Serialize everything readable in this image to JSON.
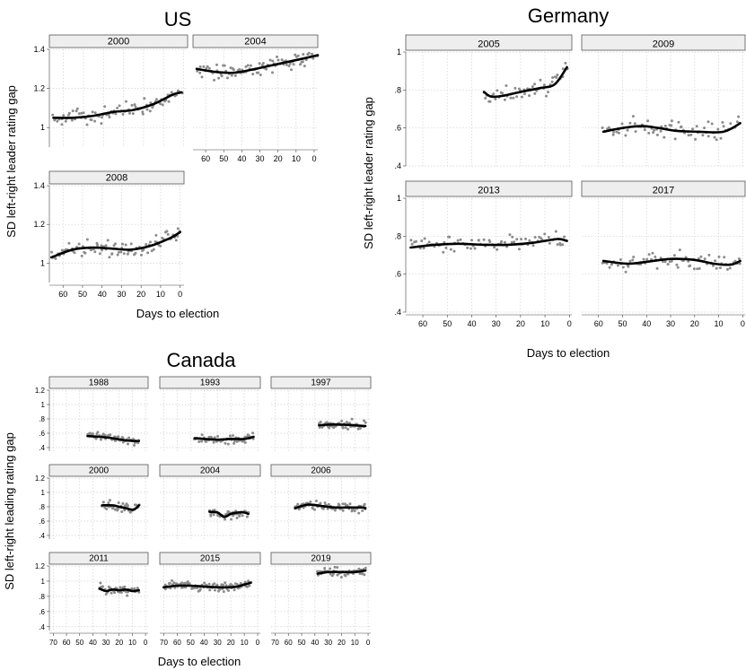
{
  "figure": {
    "groups": [
      {
        "key": "us",
        "title": "US",
        "ylabel": "SD left-right leader rating gap",
        "xlabel": "Days to election"
      },
      {
        "key": "germany",
        "title": "Germany",
        "ylabel": "SD left-right leader rating gap",
        "xlabel": "Days to election"
      },
      {
        "key": "canada",
        "title": "Canada",
        "ylabel": "SD left-right leading rating gap",
        "xlabel": "Days to election"
      }
    ]
  },
  "colors": {
    "points": "#8c8c8c",
    "line": "#000000",
    "strip_bg": "#eeeeee",
    "strip_border": "#555555",
    "grid": "#d0d0d0"
  },
  "chart_data": [
    {
      "type": "scatter",
      "title": "US",
      "xlabel": "Days to election",
      "ylabel": "SD left-right leader rating gap",
      "x_reversed": true,
      "xlim": [
        67,
        -2
      ],
      "ylim": [
        0.9,
        1.4
      ],
      "xticks": [
        60,
        50,
        40,
        30,
        20,
        10,
        0
      ],
      "xtick_labels": [
        "60",
        "50",
        "40",
        "30",
        "20",
        "10",
        "0"
      ],
      "yticks": [
        1,
        1.2,
        1.4
      ],
      "ytick_labels": [
        "1",
        "1.2",
        "1.4"
      ],
      "grid": true,
      "panels": [
        {
          "title": "2000",
          "smooth": [
            [
              65,
              1.05
            ],
            [
              55,
              1.05
            ],
            [
              45,
              1.06
            ],
            [
              35,
              1.08
            ],
            [
              25,
              1.09
            ],
            [
              15,
              1.12
            ],
            [
              5,
              1.17
            ],
            [
              1,
              1.18
            ]
          ]
        },
        {
          "title": "2004",
          "smooth": [
            [
              65,
              1.3
            ],
            [
              55,
              1.285
            ],
            [
              45,
              1.28
            ],
            [
              35,
              1.295
            ],
            [
              25,
              1.315
            ],
            [
              15,
              1.335
            ],
            [
              5,
              1.355
            ],
            [
              -2,
              1.37
            ]
          ]
        },
        {
          "title": "2008",
          "smooth": [
            [
              66,
              1.03
            ],
            [
              55,
              1.07
            ],
            [
              45,
              1.08
            ],
            [
              35,
              1.075
            ],
            [
              25,
              1.07
            ],
            [
              15,
              1.09
            ],
            [
              5,
              1.13
            ],
            [
              0,
              1.16
            ]
          ]
        }
      ]
    },
    {
      "type": "scatter",
      "title": "Germany",
      "xlabel": "Days to election",
      "ylabel": "SD left-right leader rating gap",
      "x_reversed": true,
      "xlim": [
        67,
        -1
      ],
      "ylim": [
        0.4,
        1.0
      ],
      "xticks": [
        60,
        50,
        40,
        30,
        20,
        10,
        0
      ],
      "xtick_labels": [
        "60",
        "50",
        "40",
        "30",
        "20",
        "10",
        "0"
      ],
      "yticks": [
        0.4,
        0.6,
        0.8,
        1
      ],
      "ytick_labels": [
        ".4",
        ".6",
        ".8",
        "1"
      ],
      "grid": true,
      "panels": [
        {
          "title": "2005",
          "smooth": [
            [
              35,
              0.79
            ],
            [
              32,
              0.765
            ],
            [
              27,
              0.77
            ],
            [
              20,
              0.79
            ],
            [
              12,
              0.81
            ],
            [
              6,
              0.83
            ],
            [
              1,
              0.92
            ]
          ]
        },
        {
          "title": "2009",
          "smooth": [
            [
              58,
              0.58
            ],
            [
              50,
              0.6
            ],
            [
              42,
              0.61
            ],
            [
              35,
              0.6
            ],
            [
              28,
              0.585
            ],
            [
              18,
              0.58
            ],
            [
              8,
              0.58
            ],
            [
              1,
              0.625
            ]
          ]
        },
        {
          "title": "2013",
          "smooth": [
            [
              65,
              0.74
            ],
            [
              55,
              0.755
            ],
            [
              45,
              0.76
            ],
            [
              35,
              0.755
            ],
            [
              25,
              0.755
            ],
            [
              15,
              0.765
            ],
            [
              5,
              0.785
            ],
            [
              1,
              0.775
            ]
          ]
        },
        {
          "title": "2017",
          "smooth": [
            [
              58,
              0.67
            ],
            [
              48,
              0.655
            ],
            [
              40,
              0.665
            ],
            [
              30,
              0.68
            ],
            [
              20,
              0.675
            ],
            [
              12,
              0.655
            ],
            [
              5,
              0.65
            ],
            [
              1,
              0.67
            ]
          ]
        }
      ]
    },
    {
      "type": "scatter",
      "title": "Canada",
      "xlabel": "Days to election",
      "ylabel": "SD left-right leading rating gap",
      "x_reversed": true,
      "xlim": [
        73,
        -2
      ],
      "ylim": [
        0.35,
        1.2
      ],
      "xticks": [
        70,
        60,
        50,
        40,
        30,
        20,
        10,
        0
      ],
      "xtick_labels": [
        "70",
        "60",
        "50",
        "40",
        "30",
        "20",
        "10",
        "0"
      ],
      "yticks": [
        0.4,
        0.6,
        0.8,
        1,
        1.2
      ],
      "ytick_labels": [
        ".4",
        ".6",
        ".8",
        "1",
        "1.2"
      ],
      "grid": true,
      "panels": [
        {
          "title": "1988",
          "smooth": [
            [
              44,
              0.56
            ],
            [
              35,
              0.55
            ],
            [
              25,
              0.53
            ],
            [
              15,
              0.5
            ],
            [
              5,
              0.49
            ]
          ]
        },
        {
          "title": "1993",
          "smooth": [
            [
              47,
              0.53
            ],
            [
              40,
              0.52
            ],
            [
              30,
              0.51
            ],
            [
              20,
              0.52
            ],
            [
              10,
              0.52
            ],
            [
              3,
              0.55
            ]
          ]
        },
        {
          "title": "1997",
          "smooth": [
            [
              37,
              0.71
            ],
            [
              30,
              0.72
            ],
            [
              20,
              0.72
            ],
            [
              10,
              0.71
            ],
            [
              2,
              0.7
            ]
          ]
        },
        {
          "title": "2000",
          "smooth": [
            [
              33,
              0.82
            ],
            [
              25,
              0.82
            ],
            [
              20,
              0.8
            ],
            [
              15,
              0.78
            ],
            [
              9,
              0.76
            ],
            [
              5,
              0.82
            ]
          ]
        },
        {
          "title": "2004",
          "smooth": [
            [
              36,
              0.73
            ],
            [
              30,
              0.72
            ],
            [
              25,
              0.66
            ],
            [
              20,
              0.7
            ],
            [
              15,
              0.72
            ],
            [
              10,
              0.72
            ],
            [
              7,
              0.7
            ]
          ]
        },
        {
          "title": "2006",
          "smooth": [
            [
              55,
              0.78
            ],
            [
              45,
              0.83
            ],
            [
              35,
              0.81
            ],
            [
              25,
              0.79
            ],
            [
              15,
              0.79
            ],
            [
              5,
              0.79
            ],
            [
              2,
              0.78
            ]
          ]
        },
        {
          "title": "2011",
          "smooth": [
            [
              35,
              0.9
            ],
            [
              30,
              0.87
            ],
            [
              25,
              0.89
            ],
            [
              20,
              0.88
            ],
            [
              15,
              0.89
            ],
            [
              10,
              0.87
            ],
            [
              5,
              0.88
            ]
          ]
        },
        {
          "title": "2015",
          "smooth": [
            [
              70,
              0.92
            ],
            [
              60,
              0.94
            ],
            [
              50,
              0.94
            ],
            [
              40,
              0.93
            ],
            [
              30,
              0.92
            ],
            [
              20,
              0.92
            ],
            [
              15,
              0.93
            ],
            [
              5,
              0.98
            ]
          ]
        },
        {
          "title": "2019",
          "smooth": [
            [
              38,
              1.1
            ],
            [
              30,
              1.12
            ],
            [
              20,
              1.12
            ],
            [
              10,
              1.12
            ],
            [
              2,
              1.14
            ]
          ]
        }
      ]
    }
  ]
}
